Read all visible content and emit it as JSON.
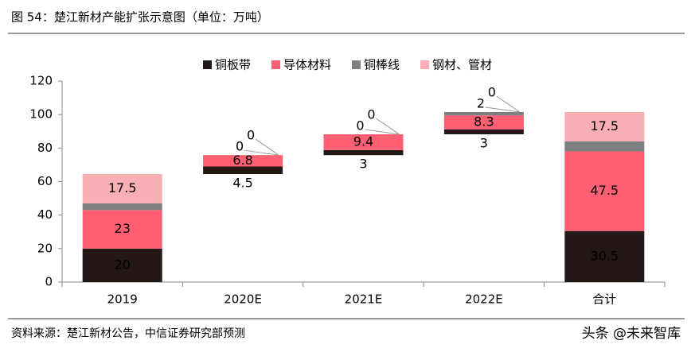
{
  "header": {
    "title": "图 54：楚江新材产能扩张示意图（单位：万吨）"
  },
  "chart_data": {
    "type": "waterfall",
    "categories": [
      "2019",
      "2020E",
      "2021E",
      "2022E",
      "合计"
    ],
    "series": [
      {
        "name": "铜板带",
        "color": "#231815",
        "values": [
          20,
          4.5,
          3,
          3,
          30.5
        ]
      },
      {
        "name": "导体材料",
        "color": "#ff5f73",
        "values": [
          23,
          6.8,
          9.4,
          8.3,
          47.5
        ]
      },
      {
        "name": "铜棒线",
        "color": "#7f7f7f",
        "values": [
          4,
          0,
          0,
          2,
          6
        ]
      },
      {
        "name": "钢材、管材",
        "color": "#f9aeb4",
        "values": [
          17.5,
          0,
          0,
          0,
          17.5
        ]
      }
    ],
    "ylim": [
      0,
      120
    ],
    "yticks": [
      0,
      20,
      40,
      60,
      80,
      100,
      120
    ],
    "grid": false,
    "legend": "top"
  },
  "footer": {
    "source": "资料来源：楚江新材公告，中信证券研究部预测",
    "watermark": "头条 @未来智库"
  }
}
